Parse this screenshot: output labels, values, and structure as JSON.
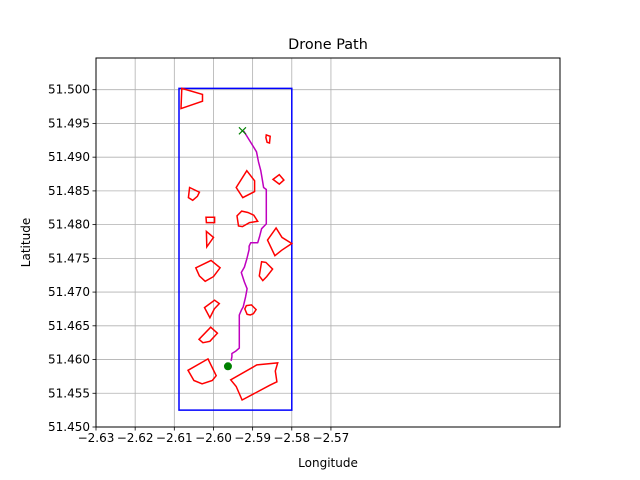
{
  "chart_data": {
    "type": "line",
    "title": "Drone Path",
    "xlabel": "Longitude",
    "ylabel": "Latitude",
    "xlim": [
      -2.63,
      -2.5115
    ],
    "ylim": [
      51.45,
      51.5047
    ],
    "x_ticks": [
      -2.63,
      -2.62,
      -2.61,
      -2.6,
      -2.59,
      -2.58,
      -2.57
    ],
    "x_tick_labels": [
      "−2.63",
      "−2.62",
      "−2.61",
      "−2.60",
      "−2.59",
      "−2.58",
      "−2.57"
    ],
    "y_ticks": [
      51.45,
      51.455,
      51.46,
      51.465,
      51.47,
      51.475,
      51.48,
      51.485,
      51.49,
      51.495,
      51.5
    ],
    "y_tick_labels": [
      "51.450",
      "51.455",
      "51.460",
      "51.465",
      "51.470",
      "51.475",
      "51.480",
      "51.485",
      "51.490",
      "51.495",
      "51.500"
    ],
    "grid": true,
    "boundary": {
      "color": "#0000ff",
      "corners": [
        [
          -2.6088,
          51.4525
        ],
        [
          -2.58,
          51.4525
        ],
        [
          -2.58,
          51.5002
        ],
        [
          -2.6088,
          51.5002
        ]
      ]
    },
    "obstacle_color": "#ff0000",
    "obstacles": [
      [
        [
          -2.6081,
          51.5002
        ],
        [
          -2.6028,
          51.4993
        ],
        [
          -2.6028,
          51.4983
        ],
        [
          -2.6083,
          51.4972
        ]
      ],
      [
        [
          -2.5865,
          51.4933
        ],
        [
          -2.5855,
          51.4931
        ],
        [
          -2.5857,
          51.4921
        ],
        [
          -2.5863,
          51.4922
        ],
        [
          -2.5866,
          51.4929
        ]
      ],
      [
        [
          -2.5915,
          51.488
        ],
        [
          -2.5895,
          51.4865
        ],
        [
          -2.5895,
          51.4849
        ],
        [
          -2.5925,
          51.484
        ],
        [
          -2.5942,
          51.4855
        ]
      ],
      [
        [
          -2.5832,
          51.4874
        ],
        [
          -2.582,
          51.4866
        ],
        [
          -2.5832,
          51.486
        ],
        [
          -2.5848,
          51.4867
        ]
      ],
      [
        [
          -2.6061,
          51.4855
        ],
        [
          -2.6036,
          51.4848
        ],
        [
          -2.6041,
          51.4842
        ],
        [
          -2.6053,
          51.4836
        ],
        [
          -2.6064,
          51.484
        ]
      ],
      [
        [
          -2.6019,
          51.4811
        ],
        [
          -2.5997,
          51.4811
        ],
        [
          -2.5997,
          51.4803
        ],
        [
          -2.6018,
          51.4803
        ]
      ],
      [
        [
          -2.5928,
          51.482
        ],
        [
          -2.5912,
          51.4818
        ],
        [
          -2.5897,
          51.4814
        ],
        [
          -2.5887,
          51.4805
        ],
        [
          -2.5908,
          51.4803
        ],
        [
          -2.5926,
          51.4797
        ],
        [
          -2.5936,
          51.4798
        ],
        [
          -2.594,
          51.4813
        ]
      ],
      [
        [
          -2.6018,
          51.479
        ],
        [
          -2.6,
          51.4781
        ],
        [
          -2.6017,
          51.4767
        ]
      ],
      [
        [
          -2.584,
          51.4795
        ],
        [
          -2.5825,
          51.4781
        ],
        [
          -2.58,
          51.4772
        ],
        [
          -2.5826,
          51.4762
        ],
        [
          -2.5843,
          51.4754
        ],
        [
          -2.5862,
          51.4777
        ]
      ],
      [
        [
          -2.6006,
          51.4747
        ],
        [
          -2.5983,
          51.4736
        ],
        [
          -2.6,
          51.4723
        ],
        [
          -2.6021,
          51.4716
        ],
        [
          -2.6036,
          51.4724
        ],
        [
          -2.6045,
          51.4736
        ]
      ],
      [
        [
          -2.5877,
          51.4745
        ],
        [
          -2.5866,
          51.4744
        ],
        [
          -2.5849,
          51.4734
        ],
        [
          -2.5864,
          51.4723
        ],
        [
          -2.5874,
          51.4717
        ],
        [
          -2.5883,
          51.4724
        ]
      ],
      [
        [
          -2.5997,
          51.4688
        ],
        [
          -2.5985,
          51.4683
        ],
        [
          -2.5998,
          51.4675
        ],
        [
          -2.6009,
          51.4662
        ],
        [
          -2.6023,
          51.4677
        ]
      ],
      [
        [
          -2.5916,
          51.468
        ],
        [
          -2.5903,
          51.4681
        ],
        [
          -2.5891,
          51.4674
        ],
        [
          -2.5898,
          51.4668
        ],
        [
          -2.5906,
          51.4666
        ],
        [
          -2.5914,
          51.4667
        ],
        [
          -2.592,
          51.4675
        ]
      ],
      [
        [
          -2.6007,
          51.4648
        ],
        [
          -2.599,
          51.4639
        ],
        [
          -2.6009,
          51.4627
        ],
        [
          -2.6027,
          51.4625
        ],
        [
          -2.6037,
          51.463
        ]
      ],
      [
        [
          -2.6014,
          51.4601
        ],
        [
          -2.5993,
          51.4576
        ],
        [
          -2.6003,
          51.4569
        ],
        [
          -2.6029,
          51.4564
        ],
        [
          -2.605,
          51.4569
        ],
        [
          -2.6065,
          51.4584
        ]
      ],
      [
        [
          -2.5889,
          51.4592
        ],
        [
          -2.5836,
          51.4595
        ],
        [
          -2.5842,
          51.4583
        ],
        [
          -2.5838,
          51.4567
        ],
        [
          -2.5856,
          51.4562
        ],
        [
          -2.5927,
          51.454
        ],
        [
          -2.5942,
          51.456
        ],
        [
          -2.5956,
          51.457
        ]
      ]
    ],
    "path_color": "#bf00bf",
    "path": [
      [
        -2.5923,
        51.4939
      ],
      [
        -2.5904,
        51.4921
      ],
      [
        -2.589,
        51.4908
      ],
      [
        -2.5885,
        51.4893
      ],
      [
        -2.5879,
        51.488
      ],
      [
        -2.5875,
        51.4866
      ],
      [
        -2.5872,
        51.4855
      ],
      [
        -2.5865,
        51.4852
      ],
      [
        -2.5865,
        51.482
      ],
      [
        -2.5865,
        51.4801
      ],
      [
        -2.5877,
        51.4794
      ],
      [
        -2.5882,
        51.4783
      ],
      [
        -2.5887,
        51.4773
      ],
      [
        -2.5898,
        51.4773
      ],
      [
        -2.5905,
        51.4773
      ],
      [
        -2.5909,
        51.4768
      ],
      [
        -2.5909,
        51.4763
      ],
      [
        -2.5915,
        51.4749
      ],
      [
        -2.5921,
        51.4737
      ],
      [
        -2.5929,
        51.4729
      ],
      [
        -2.5921,
        51.4715
      ],
      [
        -2.5914,
        51.4705
      ],
      [
        -2.5918,
        51.4693
      ],
      [
        -2.5924,
        51.4678
      ],
      [
        -2.5929,
        51.4673
      ],
      [
        -2.5934,
        51.4666
      ],
      [
        -2.5934,
        51.465
      ],
      [
        -2.5934,
        51.4637
      ],
      [
        -2.5934,
        51.4617
      ],
      [
        -2.5944,
        51.4612
      ],
      [
        -2.5953,
        51.4609
      ],
      [
        -2.5953,
        51.4604
      ],
      [
        -2.5955,
        51.4598
      ]
    ],
    "start": {
      "x": -2.5963,
      "y": 51.459,
      "color": "#008000",
      "marker": "circle"
    },
    "goal": {
      "x": -2.5926,
      "y": 51.4939,
      "color": "#008000",
      "marker": "x"
    }
  }
}
